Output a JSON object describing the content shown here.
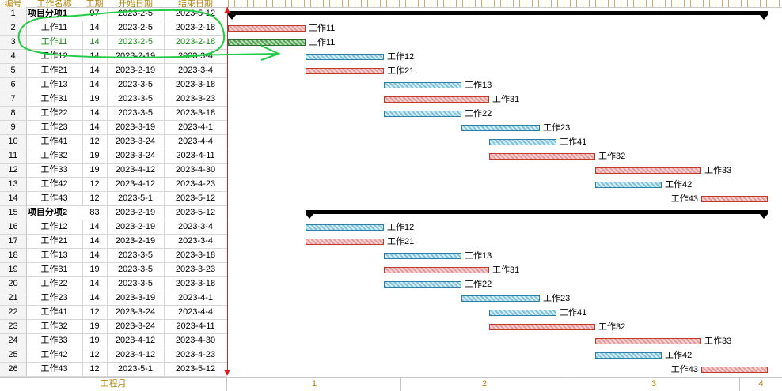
{
  "header": {
    "col_no": "编号",
    "col_name": "工作名称",
    "col_dur": "工期",
    "col_start": "开始日期",
    "col_end": "结束日期"
  },
  "footer": {
    "left_label": "工程月",
    "months": [
      "1",
      "2",
      "3",
      "4"
    ]
  },
  "colors": {
    "critical_bar": "#e89a9a",
    "normal_bar": "#7fc3dd",
    "highlight_bar": "#5aa05a",
    "highlight_text": "#1a8c1a",
    "today_line": "#e02020",
    "annotation": "#22cc44"
  },
  "rows": [
    {
      "no": "1",
      "name": "项目分项1",
      "dur": "97",
      "start": "2023-2-5",
      "end": "2023-5-12",
      "group": true
    },
    {
      "no": "2",
      "name": "工作11",
      "dur": "14",
      "start": "2023-2-5",
      "end": "2023-2-18",
      "bar": "red",
      "label": "工作11"
    },
    {
      "no": "3",
      "name": "工作11",
      "dur": "14",
      "start": "2023-2-5",
      "end": "2023-2-18",
      "bar": "green",
      "label": "工作11",
      "highlight": true
    },
    {
      "no": "4",
      "name": "工作12",
      "dur": "14",
      "start": "2023-2-19",
      "end": "2023-3-4",
      "bar": "blue",
      "label": "工作12"
    },
    {
      "no": "5",
      "name": "工作21",
      "dur": "14",
      "start": "2023-2-19",
      "end": "2023-3-4",
      "bar": "red",
      "label": "工作21"
    },
    {
      "no": "6",
      "name": "工作13",
      "dur": "14",
      "start": "2023-3-5",
      "end": "2023-3-18",
      "bar": "blue",
      "label": "工作13"
    },
    {
      "no": "7",
      "name": "工作31",
      "dur": "19",
      "start": "2023-3-5",
      "end": "2023-3-23",
      "bar": "red",
      "label": "工作31"
    },
    {
      "no": "8",
      "name": "工作22",
      "dur": "14",
      "start": "2023-3-5",
      "end": "2023-3-18",
      "bar": "blue",
      "label": "工作22"
    },
    {
      "no": "9",
      "name": "工作23",
      "dur": "14",
      "start": "2023-3-19",
      "end": "2023-4-1",
      "bar": "blue",
      "label": "工作23"
    },
    {
      "no": "10",
      "name": "工作41",
      "dur": "12",
      "start": "2023-3-24",
      "end": "2023-4-4",
      "bar": "blue",
      "label": "工作41"
    },
    {
      "no": "11",
      "name": "工作32",
      "dur": "19",
      "start": "2023-3-24",
      "end": "2023-4-11",
      "bar": "red",
      "label": "工作32"
    },
    {
      "no": "12",
      "name": "工作33",
      "dur": "19",
      "start": "2023-4-12",
      "end": "2023-4-30",
      "bar": "red",
      "label": "工作33"
    },
    {
      "no": "13",
      "name": "工作42",
      "dur": "12",
      "start": "2023-4-12",
      "end": "2023-4-23",
      "bar": "blue",
      "label": "工作42"
    },
    {
      "no": "14",
      "name": "工作43",
      "dur": "12",
      "start": "2023-5-1",
      "end": "2023-5-12",
      "bar": "red",
      "label": "工作43",
      "label_left": true
    },
    {
      "no": "15",
      "name": "项目分项2",
      "dur": "83",
      "start": "2023-2-19",
      "end": "2023-5-12",
      "group": true
    },
    {
      "no": "16",
      "name": "工作12",
      "dur": "14",
      "start": "2023-2-19",
      "end": "2023-3-4",
      "bar": "blue",
      "label": "工作12"
    },
    {
      "no": "17",
      "name": "工作21",
      "dur": "14",
      "start": "2023-2-19",
      "end": "2023-3-4",
      "bar": "red",
      "label": "工作21"
    },
    {
      "no": "18",
      "name": "工作13",
      "dur": "14",
      "start": "2023-3-5",
      "end": "2023-3-18",
      "bar": "blue",
      "label": "工作13"
    },
    {
      "no": "19",
      "name": "工作31",
      "dur": "19",
      "start": "2023-3-5",
      "end": "2023-3-23",
      "bar": "red",
      "label": "工作31"
    },
    {
      "no": "20",
      "name": "工作22",
      "dur": "14",
      "start": "2023-3-5",
      "end": "2023-3-18",
      "bar": "blue",
      "label": "工作22"
    },
    {
      "no": "21",
      "name": "工作23",
      "dur": "14",
      "start": "2023-3-19",
      "end": "2023-4-1",
      "bar": "blue",
      "label": "工作23"
    },
    {
      "no": "22",
      "name": "工作41",
      "dur": "12",
      "start": "2023-3-24",
      "end": "2023-4-4",
      "bar": "blue",
      "label": "工作41"
    },
    {
      "no": "23",
      "name": "工作32",
      "dur": "19",
      "start": "2023-3-24",
      "end": "2023-4-11",
      "bar": "red",
      "label": "工作32"
    },
    {
      "no": "24",
      "name": "工作33",
      "dur": "19",
      "start": "2023-4-12",
      "end": "2023-4-30",
      "bar": "red",
      "label": "工作33"
    },
    {
      "no": "25",
      "name": "工作42",
      "dur": "12",
      "start": "2023-4-12",
      "end": "2023-4-23",
      "bar": "blue",
      "label": "工作42"
    },
    {
      "no": "26",
      "name": "工作43",
      "dur": "12",
      "start": "2023-5-1",
      "end": "2023-5-12",
      "bar": "red",
      "label": "工作43",
      "label_left": true
    }
  ]
}
